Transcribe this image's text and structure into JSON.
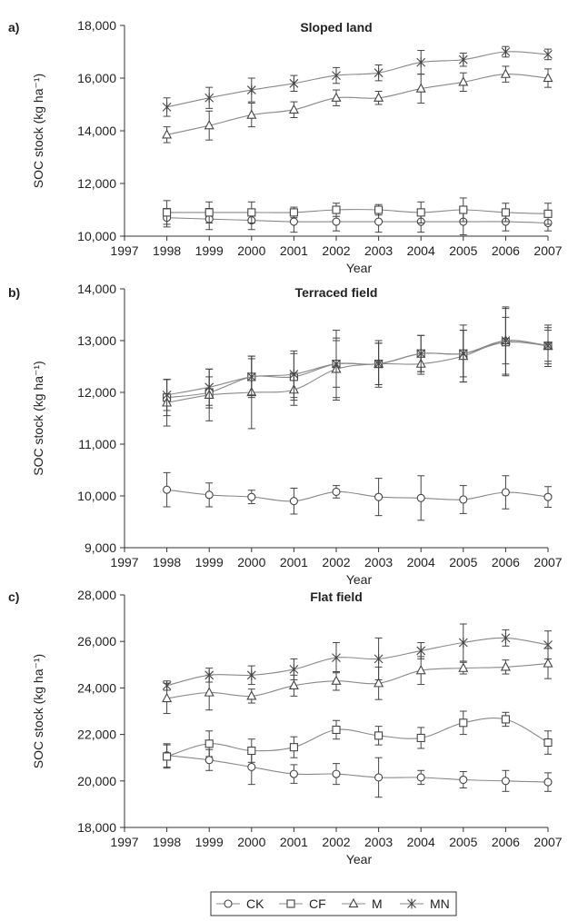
{
  "chart_data": [
    {
      "type": "line",
      "panel_label": "a)",
      "title": "Sloped land",
      "xlabel": "Year",
      "ylabel": "SOC stock (kg ha⁻¹)",
      "ylim": [
        10000,
        18000
      ],
      "yticks": [
        "10,000",
        "12,000",
        "14,000",
        "16,000",
        "18,000"
      ],
      "xlim": [
        1997,
        2007
      ],
      "xticks": [
        "1997",
        "1998",
        "1999",
        "2000",
        "2001",
        "2002",
        "2003",
        "2004",
        "2005",
        "2006",
        "2007"
      ],
      "x": [
        1998,
        1999,
        2000,
        2001,
        2002,
        2003,
        2004,
        2005,
        2006,
        2007
      ],
      "series": [
        {
          "name": "CK",
          "marker": "circle",
          "values": [
            10700,
            10650,
            10600,
            10550,
            10550,
            10550,
            10550,
            10550,
            10550,
            10500
          ],
          "errors": [
            350,
            400,
            350,
            400,
            350,
            400,
            400,
            500,
            350,
            300
          ]
        },
        {
          "name": "CF",
          "marker": "square",
          "values": [
            10900,
            10900,
            10900,
            10900,
            11000,
            11000,
            10900,
            11000,
            10900,
            10850
          ],
          "errors": [
            450,
            400,
            400,
            200,
            250,
            200,
            400,
            450,
            350,
            400
          ]
        },
        {
          "name": "M",
          "marker": "triangle",
          "values": [
            13850,
            14200,
            14600,
            14800,
            15250,
            15250,
            15600,
            15850,
            16150,
            16000
          ],
          "errors": [
            300,
            550,
            450,
            300,
            300,
            250,
            550,
            350,
            300,
            350
          ]
        },
        {
          "name": "MN",
          "marker": "asterisk",
          "values": [
            14900,
            15250,
            15550,
            15800,
            16100,
            16200,
            16600,
            16700,
            17000,
            16900
          ],
          "errors": [
            350,
            400,
            450,
            300,
            300,
            300,
            450,
            250,
            200,
            200
          ]
        }
      ]
    },
    {
      "type": "line",
      "panel_label": "b)",
      "title": "Terraced field",
      "xlabel": "Year",
      "ylabel": "SOC stock (kg ha⁻¹)",
      "ylim": [
        9000,
        14000
      ],
      "yticks": [
        "9,000",
        "10,000",
        "11,000",
        "12,000",
        "13,000",
        "14,000"
      ],
      "xlim": [
        1997,
        2007
      ],
      "xticks": [
        "1997",
        "1998",
        "1999",
        "2000",
        "2001",
        "2002",
        "2003",
        "2004",
        "2005",
        "2006",
        "2007"
      ],
      "x": [
        1998,
        1999,
        2000,
        2001,
        2002,
        2003,
        2004,
        2005,
        2006,
        2007
      ],
      "series": [
        {
          "name": "CK",
          "marker": "circle",
          "values": [
            10120,
            10020,
            9980,
            9900,
            10080,
            9980,
            9960,
            9930,
            10070,
            9980
          ],
          "errors": [
            330,
            230,
            130,
            250,
            120,
            360,
            430,
            270,
            320,
            200
          ]
        },
        {
          "name": "CF",
          "marker": "square",
          "values": [
            11900,
            12000,
            12300,
            12300,
            12550,
            12550,
            12750,
            12750,
            12970,
            12900
          ],
          "errors": [
            350,
            300,
            400,
            450,
            650,
            400,
            350,
            550,
            650,
            400
          ]
        },
        {
          "name": "M",
          "marker": "triangle",
          "values": [
            11800,
            11950,
            12000,
            12050,
            12450,
            12550,
            12550,
            12700,
            13000,
            12900
          ],
          "errors": [
            450,
            500,
            700,
            300,
            600,
            450,
            200,
            500,
            650,
            300
          ]
        },
        {
          "name": "MN",
          "marker": "asterisk",
          "values": [
            11950,
            12100,
            12300,
            12350,
            12550,
            12550,
            12750,
            12750,
            13000,
            12900
          ],
          "errors": [
            300,
            350,
            350,
            450,
            450,
            400,
            350,
            450,
            450,
            350
          ]
        }
      ]
    },
    {
      "type": "line",
      "panel_label": "c)",
      "title": "Flat field",
      "xlabel": "Year",
      "ylabel": "SOC stock (kg ha⁻¹)",
      "ylim": [
        18000,
        28000
      ],
      "yticks": [
        "18,000",
        "20,000",
        "22,000",
        "24,000",
        "26,000",
        "28,000"
      ],
      "xlim": [
        1997,
        2007
      ],
      "xticks": [
        "1997",
        "1998",
        "1999",
        "2000",
        "2001",
        "2002",
        "2003",
        "2004",
        "2005",
        "2006",
        "2007"
      ],
      "x": [
        1998,
        1999,
        2000,
        2001,
        2002,
        2003,
        2004,
        2005,
        2006,
        2007
      ],
      "series": [
        {
          "name": "CK",
          "marker": "circle",
          "values": [
            21100,
            20900,
            20600,
            20300,
            20300,
            20150,
            20150,
            20050,
            20000,
            19950
          ],
          "errors": [
            500,
            450,
            750,
            400,
            450,
            850,
            300,
            350,
            450,
            400
          ]
        },
        {
          "name": "CF",
          "marker": "square",
          "values": [
            21050,
            21600,
            21300,
            21450,
            22200,
            21950,
            21850,
            22500,
            22650,
            21650
          ],
          "errors": [
            500,
            550,
            500,
            450,
            400,
            400,
            450,
            500,
            300,
            500
          ]
        },
        {
          "name": "M",
          "marker": "triangle",
          "values": [
            23550,
            23800,
            23650,
            24100,
            24300,
            24200,
            24750,
            24850,
            24900,
            25050
          ],
          "errors": [
            650,
            750,
            300,
            450,
            400,
            700,
            600,
            250,
            300,
            650
          ]
        },
        {
          "name": "MN",
          "marker": "asterisk",
          "values": [
            24100,
            24550,
            24550,
            24800,
            25300,
            25250,
            25600,
            25950,
            26150,
            25850
          ],
          "errors": [
            200,
            300,
            400,
            450,
            650,
            900,
            350,
            800,
            350,
            600
          ]
        }
      ]
    }
  ],
  "legend": {
    "placement": "bottom-center",
    "entries": [
      "CK",
      "CF",
      "M",
      "MN"
    ]
  },
  "colors": {
    "line": "#888888",
    "marker": "#444444",
    "axis": "#333333",
    "text": "#222222"
  }
}
